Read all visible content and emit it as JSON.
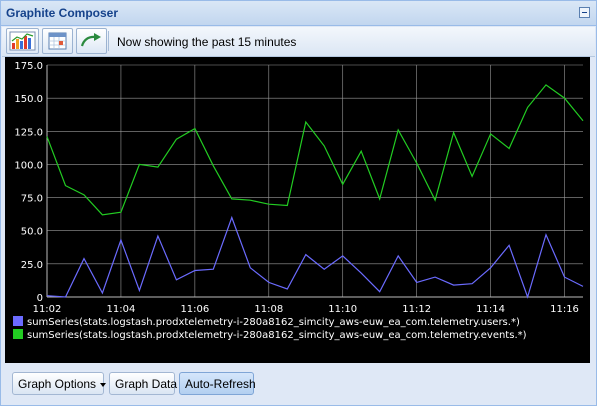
{
  "window": {
    "title": "Graphite Composer"
  },
  "toolbar": {
    "buttons": [
      {
        "name": "graph-chart-button",
        "icon": "bar-chart-icon"
      },
      {
        "name": "calendar-button",
        "icon": "calendar-icon"
      },
      {
        "name": "refresh-button",
        "icon": "refresh-arrow-icon"
      }
    ],
    "status": "Now showing the past 15 minutes"
  },
  "bottom": {
    "graph_options": "Graph Options",
    "graph_data": "Graph Data",
    "auto_refresh": "Auto-Refresh"
  },
  "chart_data": {
    "type": "line",
    "background": "#000000",
    "grid": true,
    "ylim": [
      0,
      175
    ],
    "yticks": [
      "175.0",
      "150.0",
      "125.0",
      "100.0",
      "75.0",
      "50.0",
      "25.0",
      "0"
    ],
    "x_ticks": [
      "11:02",
      "11:04",
      "11:06",
      "11:08",
      "11:10",
      "11:12",
      "11:14",
      "11:16"
    ],
    "x": [
      "11:02:00",
      "11:02:30",
      "11:03:00",
      "11:03:30",
      "11:04:00",
      "11:04:30",
      "11:05:00",
      "11:05:30",
      "11:06:00",
      "11:06:30",
      "11:07:00",
      "11:07:30",
      "11:08:00",
      "11:08:30",
      "11:09:00",
      "11:09:30",
      "11:10:00",
      "11:10:30",
      "11:11:00",
      "11:11:30",
      "11:12:00",
      "11:12:30",
      "11:13:00",
      "11:13:30",
      "11:14:00",
      "11:14:30",
      "11:15:00",
      "11:15:30",
      "11:16:00",
      "11:16:30"
    ],
    "legend_position": "bottom",
    "series": [
      {
        "name": "sumSeries(stats.logstash.prodxtelemetry-i-280a8162_simcity_aws-euw_ea_com.telemetry.users.*)",
        "color": "#6b6bff",
        "values": [
          1,
          0,
          29,
          3,
          43,
          5,
          46,
          13,
          20,
          21,
          60,
          22,
          11,
          6,
          32,
          21,
          31,
          18,
          4,
          31,
          11,
          15,
          9,
          10,
          22,
          39,
          0,
          47,
          15,
          8
        ]
      },
      {
        "name": "sumSeries(stats.logstash.prodxtelemetry-i-280a8162_simcity_aws-euw_ea_com.telemetry.events.*)",
        "color": "#22cc22",
        "values": [
          121,
          84,
          77,
          62,
          64,
          100,
          98,
          119,
          127,
          99,
          74,
          73,
          70,
          69,
          132,
          114,
          85,
          110,
          74,
          126,
          101,
          73,
          124,
          91,
          123,
          112,
          143,
          160,
          150,
          133
        ]
      }
    ]
  }
}
